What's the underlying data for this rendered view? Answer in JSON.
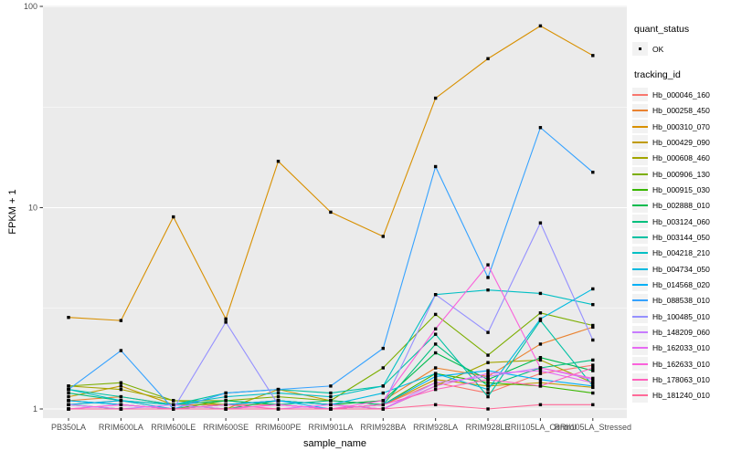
{
  "figure": {
    "panel_bg": "#EBEBEB",
    "grid_color": "#FFFFFF",
    "tick_color": "#333333",
    "axis_text_color": "#4D4D4D",
    "point_color": "#000000"
  },
  "axes": {
    "x": {
      "label": "sample_name"
    },
    "y": {
      "label": "FPKM + 1",
      "scale": "log10",
      "tick_labels": [
        "1",
        "10",
        "100"
      ]
    }
  },
  "legend": {
    "quant_status": {
      "title": "quant_status",
      "items": [
        {
          "label": "OK",
          "symbol": "point"
        }
      ]
    },
    "tracking_id": {
      "title": "tracking_id"
    }
  },
  "chart_data": {
    "type": "line",
    "title": "",
    "xlabel": "sample_name",
    "ylabel": "FPKM + 1",
    "yscale": "log10",
    "ylim": [
      1,
      100
    ],
    "y_major_ticks": [
      1,
      10,
      100
    ],
    "y_minor_ticks": [
      3.1623,
      31.623
    ],
    "grid": true,
    "legend_position": "right",
    "categories": [
      "PB350LA",
      "RRIM600LA",
      "RRIM600LE",
      "RRIM600SE",
      "RRIM600PE",
      "RRIM901LA",
      "RRIM928BA",
      "RRIM928LA",
      "RRIM928LE",
      "RRII105LA_Control",
      "RRII105LA_Stressed"
    ],
    "series": [
      {
        "name": "Hb_000046_160",
        "color": "#F8766D",
        "values": [
          1.05,
          1.1,
          1.0,
          1.05,
          1.05,
          1.0,
          1.05,
          1.35,
          1.2,
          1.5,
          1.65
        ]
      },
      {
        "name": "Hb_000258_450",
        "color": "#EA8331",
        "values": [
          1.1,
          1.15,
          1.05,
          1.05,
          1.1,
          1.05,
          1.1,
          1.6,
          1.45,
          2.1,
          2.55
        ]
      },
      {
        "name": "Hb_000310_070",
        "color": "#D89000",
        "values": [
          2.85,
          2.75,
          9.0,
          2.8,
          17.0,
          9.5,
          7.2,
          35.0,
          55.0,
          80.0,
          57.0
        ]
      },
      {
        "name": "Hb_000429_090",
        "color": "#C09B00",
        "values": [
          1.15,
          1.3,
          1.05,
          1.0,
          1.25,
          1.1,
          1.05,
          1.4,
          1.3,
          1.35,
          1.28
        ]
      },
      {
        "name": "Hb_000608_460",
        "color": "#A3A500",
        "values": [
          1.3,
          1.25,
          1.1,
          1.05,
          1.1,
          1.05,
          1.0,
          1.3,
          1.7,
          1.75,
          1.35
        ]
      },
      {
        "name": "Hb_000906_130",
        "color": "#7CAE00",
        "values": [
          1.3,
          1.35,
          1.1,
          1.1,
          1.15,
          1.1,
          1.6,
          2.95,
          1.85,
          3.0,
          2.6
        ]
      },
      {
        "name": "Hb_000915_030",
        "color": "#39B600",
        "values": [
          1.05,
          1.0,
          1.0,
          1.1,
          1.05,
          1.0,
          1.05,
          1.5,
          1.35,
          1.3,
          1.2
        ]
      },
      {
        "name": "Hb_002888_010",
        "color": "#00BB4E",
        "values": [
          1.1,
          1.05,
          1.0,
          1.0,
          1.1,
          1.05,
          1.1,
          1.9,
          1.4,
          1.8,
          1.55
        ]
      },
      {
        "name": "Hb_003124_060",
        "color": "#00BF7D",
        "values": [
          1.2,
          1.1,
          1.05,
          1.1,
          1.05,
          1.1,
          1.05,
          2.1,
          1.3,
          1.6,
          1.75
        ]
      },
      {
        "name": "Hb_003144_050",
        "color": "#00C1A3",
        "values": [
          1.25,
          1.15,
          1.05,
          1.2,
          1.25,
          1.2,
          1.3,
          2.35,
          1.15,
          2.75,
          1.3
        ]
      },
      {
        "name": "Hb_004218_210",
        "color": "#00BFC4",
        "values": [
          1.25,
          1.1,
          1.05,
          1.15,
          1.2,
          1.15,
          1.3,
          3.7,
          3.9,
          3.75,
          3.3
        ]
      },
      {
        "name": "Hb_004734_050",
        "color": "#00BAE0",
        "values": [
          1.05,
          1.1,
          1.0,
          1.05,
          1.1,
          1.05,
          1.2,
          1.5,
          1.25,
          2.8,
          3.95
        ]
      },
      {
        "name": "Hb_014568_020",
        "color": "#00B0F6",
        "values": [
          1.1,
          1.05,
          1.0,
          1.05,
          1.1,
          1.0,
          1.05,
          1.45,
          1.55,
          1.4,
          1.3
        ]
      },
      {
        "name": "Hb_088538_010",
        "color": "#35A2FF",
        "values": [
          1.25,
          1.95,
          1.0,
          1.2,
          1.25,
          1.3,
          2.0,
          16.0,
          4.5,
          25.0,
          15.0
        ]
      },
      {
        "name": "Hb_100485_010",
        "color": "#9590FF",
        "values": [
          1.0,
          1.0,
          1.0,
          2.7,
          1.05,
          1.0,
          1.05,
          3.7,
          2.4,
          8.4,
          2.2
        ]
      },
      {
        "name": "Hb_148209_060",
        "color": "#C77CFF",
        "values": [
          1.05,
          1.0,
          1.05,
          1.0,
          1.05,
          1.0,
          1.0,
          1.35,
          1.45,
          1.6,
          1.4
        ]
      },
      {
        "name": "Hb_162033_010",
        "color": "#E76BF3",
        "values": [
          1.0,
          1.05,
          1.0,
          1.0,
          1.0,
          1.05,
          1.0,
          1.3,
          1.5,
          1.55,
          1.35
        ]
      },
      {
        "name": "Hb_162633_010",
        "color": "#FA62DB",
        "values": [
          1.0,
          1.05,
          1.0,
          1.0,
          1.05,
          1.0,
          1.1,
          2.5,
          5.2,
          1.6,
          1.42
        ]
      },
      {
        "name": "Hb_178063_010",
        "color": "#FF62BC",
        "values": [
          1.0,
          1.0,
          1.0,
          1.05,
          1.0,
          1.0,
          1.05,
          1.25,
          1.4,
          1.3,
          1.6
        ]
      },
      {
        "name": "Hb_181240_010",
        "color": "#FF6A98",
        "values": [
          1.0,
          1.0,
          1.0,
          1.0,
          1.0,
          1.0,
          1.0,
          1.05,
          1.0,
          1.05,
          1.05
        ]
      }
    ]
  }
}
